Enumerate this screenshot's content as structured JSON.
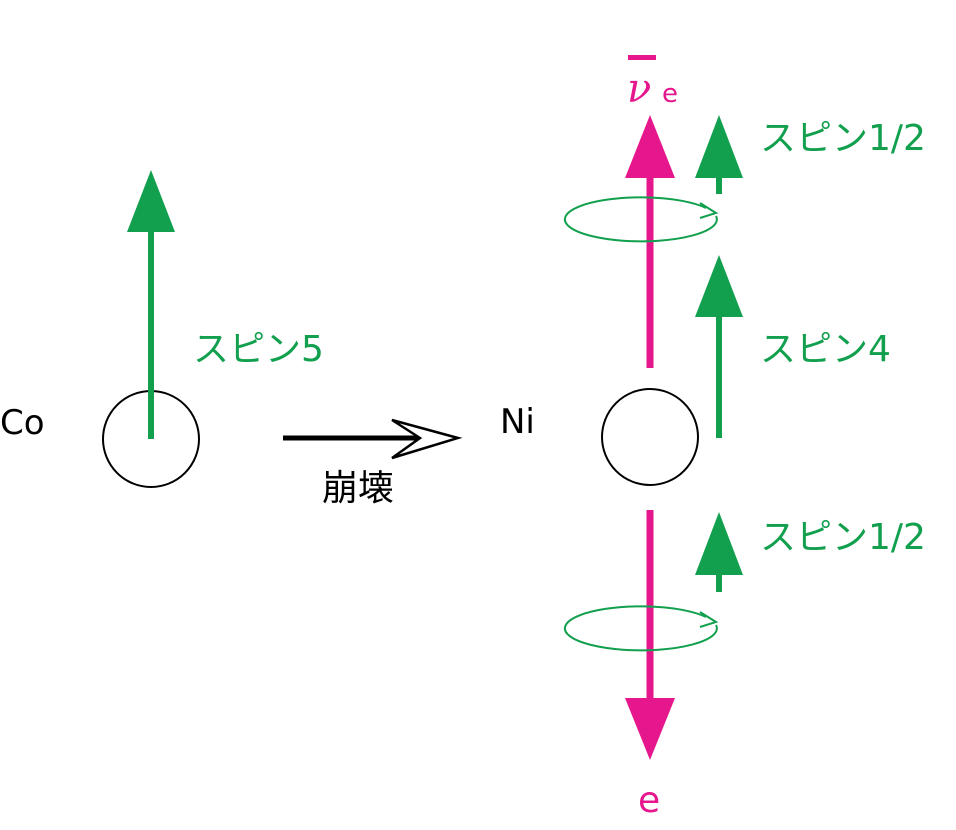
{
  "colors": {
    "spin": "#12a04e",
    "lepton": "#e6168c",
    "text": "#000000"
  },
  "parent": {
    "symbol": "Co",
    "spin_label": "スピン5"
  },
  "process": {
    "label": "崩壊"
  },
  "daughter": {
    "symbol": "Ni",
    "spin_label": "スピン4"
  },
  "antineutrino": {
    "symbol": "ν",
    "subscript": "e",
    "spin_label": "スピン1/2"
  },
  "electron": {
    "symbol": "e",
    "spin_label": "スピン1/2"
  }
}
